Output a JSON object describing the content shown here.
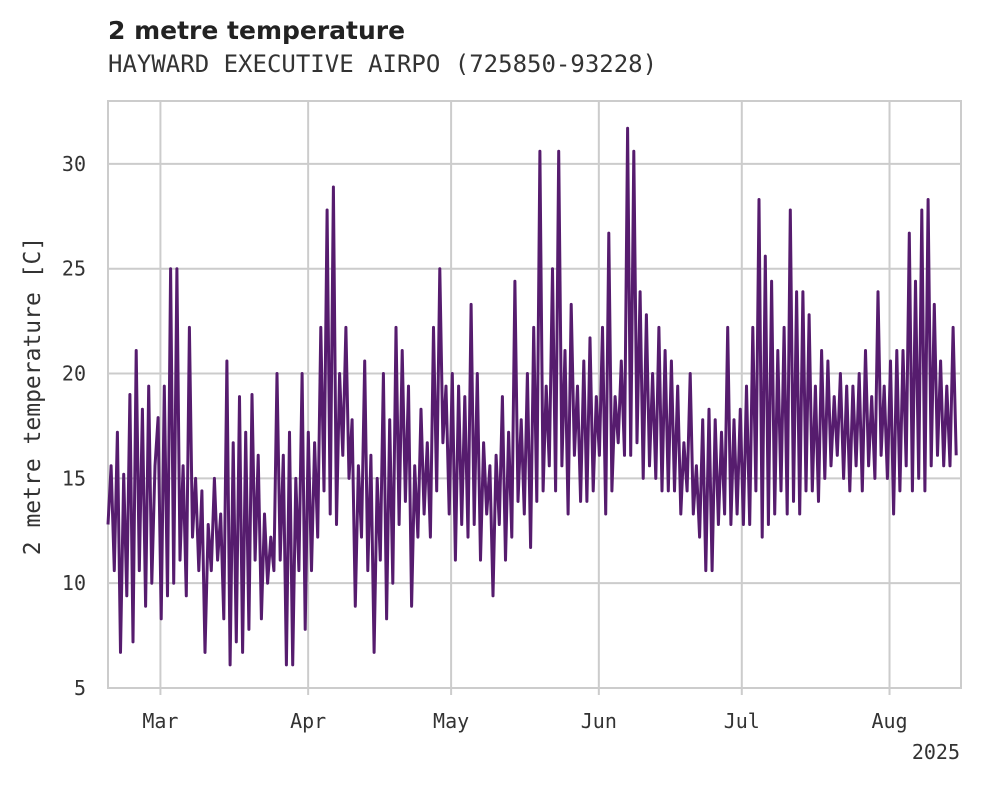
{
  "chart_data": {
    "type": "line",
    "title": "2 metre temperature",
    "subtitle": "HAYWARD EXECUTIVE AIRPO (725850-93228)",
    "ylabel": "2 metre temperature [C]",
    "xlabel": "",
    "year_label": "2025",
    "ylim": [
      5,
      33
    ],
    "yticks": [
      5,
      10,
      15,
      20,
      25,
      30
    ],
    "xlim": [
      "2025-02-18",
      "2025-08-16"
    ],
    "xticks": [
      {
        "date": "2025-03-01",
        "label": "Mar"
      },
      {
        "date": "2025-04-01",
        "label": "Apr"
      },
      {
        "date": "2025-05-01",
        "label": "May"
      },
      {
        "date": "2025-06-01",
        "label": "Jun"
      },
      {
        "date": "2025-07-01",
        "label": "Jul"
      },
      {
        "date": "2025-08-01",
        "label": "Aug"
      }
    ],
    "grid": true,
    "line_color": "#561c6e",
    "series": [
      {
        "x_start": "2025-02-18",
        "x_end": "2025-08-15",
        "sampling": "uniform",
        "values": [
          12.8,
          15.6,
          10.6,
          17.2,
          6.7,
          15.2,
          9.4,
          19.0,
          7.2,
          21.1,
          10.6,
          18.3,
          8.9,
          19.4,
          10.0,
          15.6,
          17.9,
          8.3,
          19.4,
          9.4,
          25.0,
          10.0,
          25.0,
          11.1,
          15.6,
          9.4,
          22.2,
          12.2,
          15.0,
          10.6,
          14.4,
          6.7,
          12.8,
          10.6,
          15.0,
          11.1,
          13.3,
          8.3,
          20.6,
          6.1,
          16.7,
          7.2,
          18.9,
          6.7,
          17.2,
          7.8,
          19.0,
          11.1,
          16.1,
          8.3,
          13.3,
          10.0,
          12.2,
          10.6,
          20.0,
          11.1,
          16.1,
          6.1,
          17.2,
          6.1,
          15.0,
          10.6,
          20.0,
          7.8,
          17.2,
          10.6,
          16.7,
          12.2,
          22.2,
          14.4,
          27.8,
          13.3,
          28.9,
          12.8,
          20.0,
          16.1,
          22.2,
          15.0,
          17.8,
          8.9,
          15.6,
          12.2,
          20.6,
          10.6,
          16.1,
          6.7,
          15.0,
          11.1,
          20.0,
          8.3,
          17.8,
          10.0,
          22.2,
          12.8,
          21.1,
          13.9,
          19.4,
          8.9,
          15.6,
          12.2,
          18.3,
          13.3,
          16.7,
          12.2,
          22.2,
          14.4,
          25.0,
          16.7,
          19.4,
          13.3,
          20.0,
          11.1,
          19.4,
          12.8,
          18.9,
          12.2,
          23.3,
          12.8,
          20.0,
          11.1,
          16.7,
          13.3,
          15.6,
          9.4,
          16.1,
          12.8,
          18.9,
          11.1,
          17.2,
          12.2,
          24.4,
          13.9,
          17.8,
          13.3,
          20.0,
          11.7,
          22.2,
          13.9,
          30.6,
          14.4,
          19.4,
          15.6,
          25.0,
          14.4,
          30.6,
          15.6,
          21.1,
          13.3,
          23.3,
          16.1,
          19.4,
          13.9,
          20.6,
          13.9,
          21.7,
          14.4,
          18.9,
          16.1,
          22.2,
          13.3,
          26.7,
          14.4,
          18.9,
          16.7,
          20.6,
          16.1,
          31.7,
          16.1,
          30.6,
          16.7,
          23.9,
          15.0,
          22.8,
          15.6,
          20.0,
          15.0,
          22.2,
          14.4,
          21.1,
          14.4,
          20.6,
          14.4,
          19.4,
          13.3,
          16.7,
          14.4,
          20.0,
          13.3,
          15.6,
          12.2,
          17.8,
          10.6,
          18.3,
          10.6,
          17.8,
          12.8,
          17.2,
          13.3,
          22.2,
          12.8,
          17.8,
          13.3,
          18.3,
          12.8,
          19.4,
          12.8,
          22.2,
          14.4,
          28.3,
          12.2,
          25.6,
          12.8,
          24.4,
          13.3,
          21.1,
          14.4,
          22.2,
          13.3,
          27.8,
          13.9,
          23.9,
          13.3,
          23.9,
          14.4,
          22.8,
          14.4,
          19.4,
          13.9,
          21.1,
          15.0,
          20.6,
          15.6,
          18.9,
          16.1,
          20.0,
          15.0,
          19.4,
          14.4,
          19.4,
          15.6,
          20.0,
          14.4,
          21.1,
          15.6,
          18.9,
          15.0,
          23.9,
          16.1,
          19.4,
          15.0,
          20.6,
          13.3,
          21.1,
          14.4,
          21.1,
          15.6,
          26.7,
          14.4,
          24.4,
          15.0,
          27.8,
          14.4,
          28.3,
          15.6,
          23.3,
          16.1,
          20.6,
          15.6,
          19.4,
          15.6,
          22.2,
          16.1
        ]
      }
    ]
  }
}
